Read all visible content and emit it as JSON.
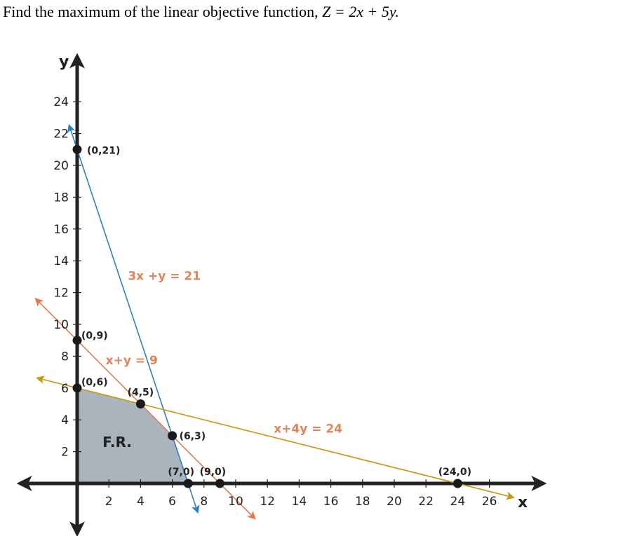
{
  "problem": {
    "prefix": "Find the maximum of the linear objective function, ",
    "formula": "Z = 2x + 5y."
  },
  "colors": {
    "axis": "#222222",
    "line_3x_y": "#2f7fc4",
    "line_x_y": "#e07a50",
    "line_x_4y": "#c9960a",
    "label_text": "#e0855a",
    "region_fill": "#a9b4bd",
    "point": "#1a1a1a"
  },
  "chart_data": {
    "type": "line",
    "xlabel": "x",
    "ylabel": "y",
    "x_ticks": [
      2,
      4,
      6,
      8,
      10,
      12,
      14,
      16,
      18,
      20,
      22,
      24,
      26
    ],
    "y_ticks": [
      2,
      4,
      6,
      8,
      10,
      12,
      14,
      16,
      18,
      20,
      22,
      24
    ],
    "x_tick_labels": [
      "2",
      "4",
      "6",
      "8",
      "10",
      "12",
      "14",
      "16",
      "18",
      "20",
      "22",
      "24",
      "26"
    ],
    "y_tick_labels": [
      "2",
      "4",
      "6",
      "8",
      "10",
      "12",
      "14",
      "16",
      "18",
      "20",
      "22",
      "24"
    ],
    "xlim": [
      -3,
      29
    ],
    "ylim": [
      -3,
      26
    ],
    "lines": [
      {
        "name": "3x +y = 21",
        "a": 3,
        "b": 1,
        "c": 21,
        "x_range": [
          -0.5,
          7.6
        ],
        "color_key": "line_3x_y",
        "label_at": [
          3.2,
          12.8
        ]
      },
      {
        "name": "x+y = 9",
        "a": 1,
        "b": 1,
        "c": 9,
        "x_range": [
          -2.6,
          11.2
        ],
        "color_key": "line_x_y",
        "label_at": [
          1.8,
          7.5
        ]
      },
      {
        "name": "x+4y = 24",
        "a": 1,
        "b": 4,
        "c": 24,
        "x_range": [
          -2.5,
          27.5
        ],
        "color_key": "line_x_4y",
        "label_at": [
          12.4,
          3.2
        ]
      }
    ],
    "points": [
      {
        "label": "(0,21)",
        "x": 0,
        "y": 21
      },
      {
        "label": "(0,9)",
        "x": 0,
        "y": 9
      },
      {
        "label": "(0,6)",
        "x": 0,
        "y": 6
      },
      {
        "label": "(4,5)",
        "x": 4,
        "y": 5
      },
      {
        "label": "(6,3)",
        "x": 6,
        "y": 3
      },
      {
        "label": "(7,0)",
        "x": 7,
        "y": 0
      },
      {
        "label": "(9,0)",
        "x": 9,
        "y": 0
      },
      {
        "label": "(24,0)",
        "x": 24,
        "y": 0
      }
    ],
    "feasible_region": {
      "label": "F.R.",
      "vertices": [
        [
          0,
          0
        ],
        [
          0,
          6
        ],
        [
          4,
          5
        ],
        [
          6,
          3
        ],
        [
          7,
          0
        ]
      ]
    }
  }
}
